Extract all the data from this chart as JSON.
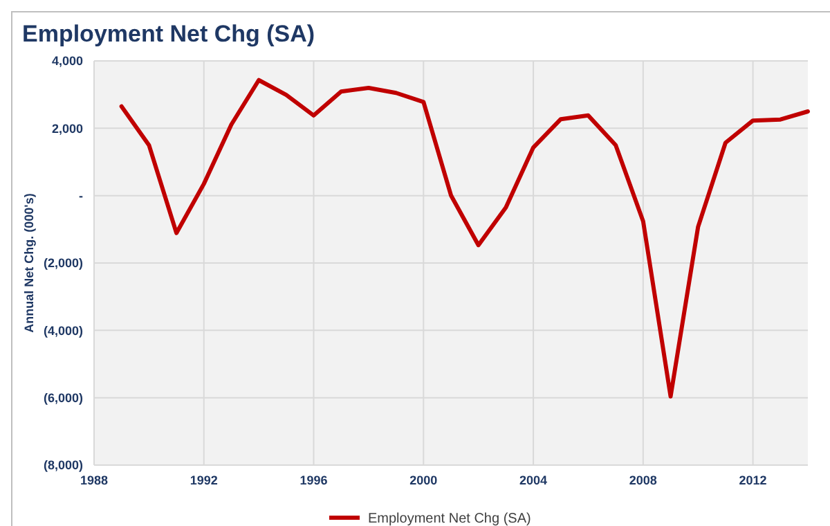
{
  "chart_data": {
    "type": "line",
    "title": "Employment Net Chg (SA)",
    "ylabel": "Annual Net Chg. (000's)",
    "x": [
      1989,
      1990,
      1991,
      1992,
      1993,
      1994,
      1995,
      1996,
      1997,
      1998,
      1999,
      2000,
      2001,
      2002,
      2003,
      2004,
      2005,
      2006,
      2007,
      2008,
      2009,
      2010,
      2011,
      2012,
      2013,
      2014
    ],
    "series": [
      {
        "name": "Employment Net Chg (SA)",
        "color": "#c00000",
        "values": [
          2650,
          1500,
          -1110,
          350,
          2110,
          3430,
          2990,
          2380,
          3090,
          3200,
          3050,
          2780,
          10,
          -1470,
          -350,
          1430,
          2270,
          2380,
          1500,
          -760,
          -5960,
          -930,
          1570,
          2230,
          2260,
          2500
        ]
      }
    ],
    "xlim": [
      1988,
      2014
    ],
    "xticks": [
      1988,
      1992,
      1996,
      2000,
      2004,
      2008,
      2012
    ],
    "ylim": [
      -8000,
      4000
    ],
    "yticks": [
      {
        "value": -8000,
        "label": "(8,000)"
      },
      {
        "value": -6000,
        "label": "(6,000)"
      },
      {
        "value": -4000,
        "label": "(4,000)"
      },
      {
        "value": -2000,
        "label": "(2,000)"
      },
      {
        "value": 0,
        "label": "-"
      },
      {
        "value": 2000,
        "label": "2,000"
      },
      {
        "value": 4000,
        "label": "4,000"
      }
    ],
    "grid": true,
    "legend": "bottom",
    "marker": "none",
    "line_style": "solid"
  }
}
